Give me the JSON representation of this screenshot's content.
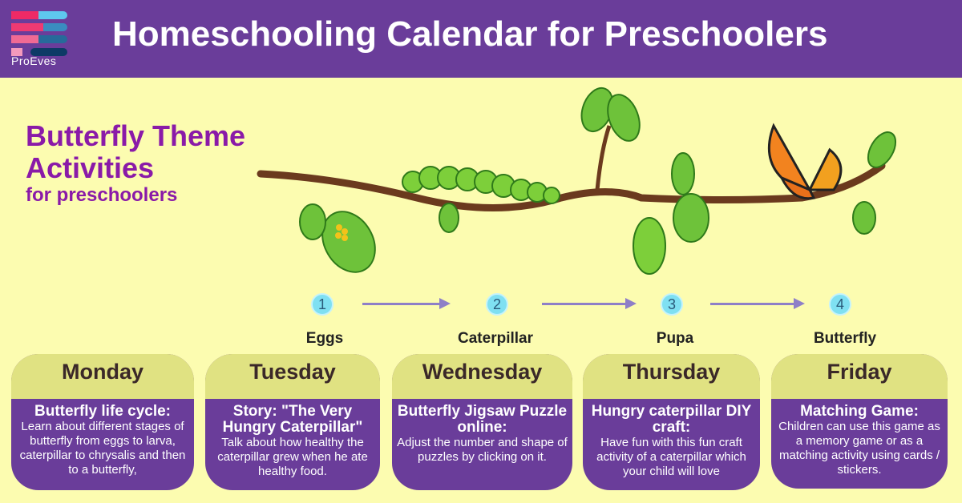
{
  "header": {
    "logo_text": "ProEves",
    "title": "Homeschooling Calendar for Preschoolers"
  },
  "theme": {
    "line1": "Butterfly Theme",
    "line2": "Activities",
    "line3": "for preschoolers"
  },
  "stages": [
    {
      "number": "1",
      "label": "Eggs"
    },
    {
      "number": "2",
      "label": "Caterpillar"
    },
    {
      "number": "3",
      "label": "Pupa"
    },
    {
      "number": "4",
      "label": "Butterfly"
    }
  ],
  "days": [
    {
      "day": "Monday",
      "heading": "Butterfly life cycle:",
      "text": "Learn about different stages of butterfly from eggs to larva, caterpillar to chrysalis and then to a butterfly,"
    },
    {
      "day": "Tuesday",
      "heading": "Story: \"The Very Hungry Caterpillar\"",
      "text": "Talk about how  healthy the caterpillar grew when he ate healthy food."
    },
    {
      "day": "Wednesday",
      "heading": "Butterfly Jigsaw Puzzle online:",
      "text": "Adjust the number and shape of puzzles by clicking on it."
    },
    {
      "day": "Thursday",
      "heading": "Hungry caterpillar DIY craft:",
      "text": "Have fun with this fun craft activity of a caterpillar which your child will love"
    },
    {
      "day": "Friday",
      "heading": "Matching Game:",
      "text": "Children can use this game as a memory game or as a matching activity using cards / stickers."
    }
  ],
  "colors": {
    "header": "#6a3d9a",
    "background": "#fcfcb0",
    "card_top": "#e0e282",
    "theme_text": "#8a1aa8"
  }
}
